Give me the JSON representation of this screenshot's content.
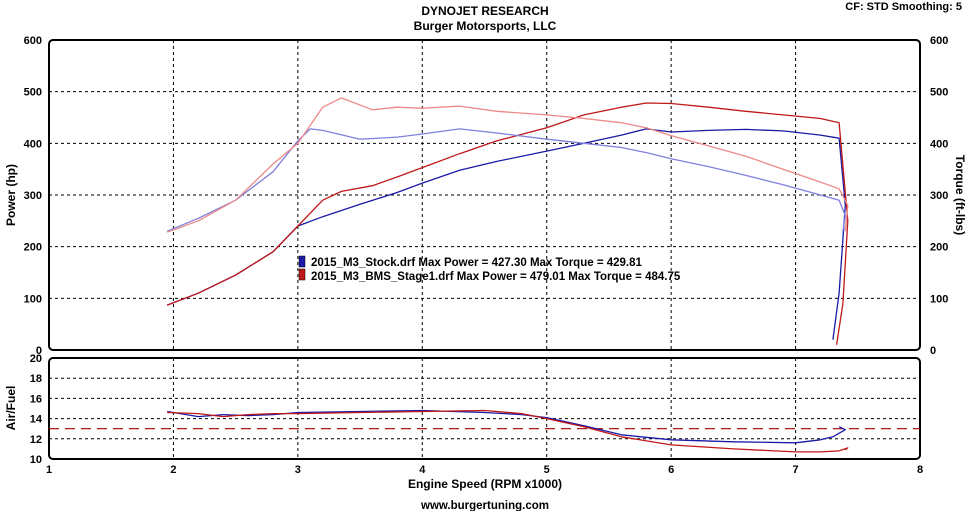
{
  "header": {
    "title": "DYNOJET RESEARCH",
    "subtitle": "Burger Motorsports, LLC",
    "settings": "CF: STD  Smoothing: 5"
  },
  "footer": {
    "url": "www.burgertuning.com"
  },
  "colors": {
    "stock": "#1a1aa6",
    "stage1": "#c01818",
    "stock_light": "#8080dd",
    "stage1_light": "#ee8888",
    "target_afr": "#a00000",
    "grid": "#000000"
  },
  "legend": [
    {
      "id": "stock",
      "text": "2015_M3_Stock.drf Max Power = 427.30     Max Torque = 429.81"
    },
    {
      "id": "stage1",
      "text": "2015_M3_BMS_Stage1.drf Max Power = 479.01     Max Torque = 484.75"
    }
  ],
  "chart_data": [
    {
      "type": "line",
      "panel": "power-torque",
      "xlabel": "",
      "ylabel": "Power (hp)",
      "y2label": "Torque (ft-lbs)",
      "xlim": [
        1,
        8
      ],
      "ylim": [
        0,
        600
      ],
      "y2lim": [
        0,
        600
      ],
      "yticks": [
        0,
        100,
        200,
        300,
        400,
        500,
        600
      ],
      "y2ticks": [
        0,
        100,
        200,
        300,
        400,
        500,
        600
      ],
      "grid": true,
      "series": [
        {
          "id": "stock-power",
          "axis": "left",
          "color_key": "stock",
          "x": [
            1.95,
            2.2,
            2.5,
            2.8,
            3.0,
            3.2,
            3.5,
            3.8,
            4.0,
            4.3,
            4.6,
            5.0,
            5.3,
            5.6,
            5.8,
            6.0,
            6.3,
            6.6,
            6.9,
            7.2,
            7.35,
            7.4,
            7.35,
            7.3
          ],
          "y": [
            87,
            110,
            145,
            190,
            240,
            258,
            282,
            305,
            323,
            348,
            365,
            385,
            400,
            416,
            428,
            422,
            425,
            427,
            424,
            416,
            410,
            280,
            110,
            20
          ]
        },
        {
          "id": "stage1-power",
          "axis": "left",
          "color_key": "stage1",
          "x": [
            1.95,
            2.2,
            2.5,
            2.8,
            3.0,
            3.2,
            3.35,
            3.6,
            3.8,
            4.0,
            4.3,
            4.6,
            5.0,
            5.3,
            5.6,
            5.8,
            6.0,
            6.3,
            6.6,
            6.9,
            7.2,
            7.35,
            7.42,
            7.38,
            7.33
          ],
          "y": [
            87,
            110,
            145,
            190,
            240,
            290,
            307,
            318,
            335,
            353,
            380,
            405,
            430,
            455,
            470,
            478,
            477,
            470,
            462,
            455,
            448,
            440,
            250,
            90,
            10
          ]
        },
        {
          "id": "stock-torque",
          "axis": "right",
          "color_key": "stock_light",
          "x": [
            1.95,
            2.2,
            2.5,
            2.8,
            3.0,
            3.1,
            3.2,
            3.5,
            3.8,
            4.0,
            4.3,
            4.6,
            5.0,
            5.3,
            5.6,
            5.8,
            6.0,
            6.3,
            6.6,
            6.9,
            7.2,
            7.35,
            7.4,
            7.38
          ],
          "y": [
            230,
            255,
            290,
            345,
            405,
            428,
            425,
            408,
            412,
            418,
            428,
            420,
            408,
            400,
            392,
            382,
            370,
            355,
            338,
            320,
            300,
            290,
            260,
            230
          ]
        },
        {
          "id": "stage1-torque",
          "axis": "right",
          "color_key": "stage1_light",
          "x": [
            1.95,
            2.2,
            2.5,
            2.8,
            3.0,
            3.2,
            3.35,
            3.6,
            3.8,
            4.0,
            4.3,
            4.6,
            5.0,
            5.3,
            5.6,
            5.8,
            6.0,
            6.3,
            6.6,
            6.9,
            7.2,
            7.35,
            7.42,
            7.4
          ],
          "y": [
            228,
            250,
            290,
            360,
            400,
            470,
            488,
            465,
            470,
            468,
            472,
            462,
            455,
            448,
            440,
            430,
            415,
            395,
            375,
            350,
            325,
            312,
            280,
            230
          ]
        }
      ]
    },
    {
      "type": "line",
      "panel": "air-fuel",
      "xlabel": "Engine Speed (RPM x1000)",
      "ylabel": "Air/Fuel",
      "xlim": [
        1,
        8
      ],
      "ylim": [
        10,
        20
      ],
      "xticks": [
        1,
        2,
        3,
        4,
        5,
        6,
        7,
        8
      ],
      "yticks": [
        10,
        12,
        14,
        16,
        18,
        20
      ],
      "target": 13,
      "grid": true,
      "series": [
        {
          "id": "stock-afr",
          "color_key": "stock",
          "x": [
            1.95,
            2.2,
            2.4,
            2.6,
            2.8,
            3.0,
            3.5,
            4.0,
            4.5,
            4.8,
            5.0,
            5.3,
            5.6,
            6.0,
            6.5,
            7.0,
            7.2,
            7.3,
            7.4,
            7.35
          ],
          "y": [
            14.7,
            14.2,
            14.4,
            14.3,
            14.4,
            14.6,
            14.7,
            14.8,
            14.6,
            14.4,
            14.1,
            13.3,
            12.4,
            11.9,
            11.7,
            11.6,
            11.9,
            12.2,
            12.9,
            13.2
          ]
        },
        {
          "id": "stage1-afr",
          "color_key": "stage1",
          "x": [
            1.95,
            2.2,
            2.4,
            2.6,
            2.8,
            3.0,
            3.5,
            4.0,
            4.5,
            4.8,
            5.0,
            5.3,
            5.6,
            6.0,
            6.5,
            7.0,
            7.2,
            7.35,
            7.42,
            7.4
          ],
          "y": [
            14.6,
            14.5,
            14.2,
            14.4,
            14.5,
            14.5,
            14.6,
            14.7,
            14.8,
            14.5,
            14.0,
            13.2,
            12.2,
            11.4,
            11.0,
            10.7,
            10.7,
            10.8,
            11.1,
            10.9
          ]
        }
      ]
    }
  ]
}
